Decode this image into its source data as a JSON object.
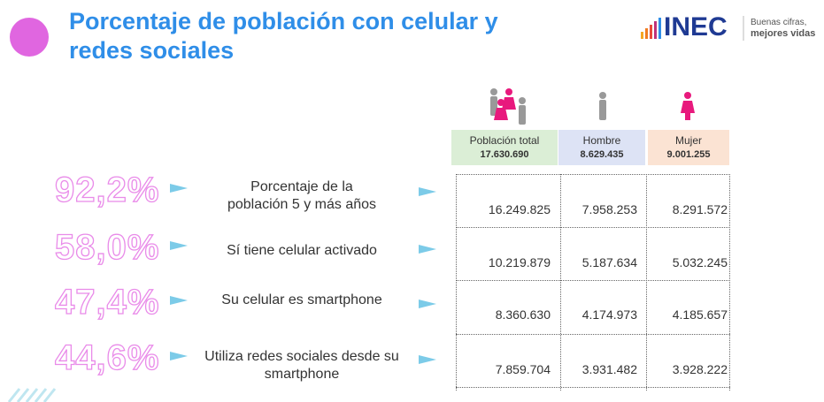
{
  "header": {
    "title_lines": [
      "Porcentaje de población con celular y",
      "redes sociales"
    ],
    "logo": {
      "name": "INEC",
      "tagline_lines": [
        "Buenas cifras,",
        "mejores vidas"
      ]
    }
  },
  "table": {
    "columns": [
      {
        "label": "Población total",
        "total": "17.630.690"
      },
      {
        "label": "Hombre",
        "total": "8.629.435"
      },
      {
        "label": "Mujer",
        "total": "9.001.255"
      }
    ],
    "rows": [
      {
        "percent": "92,2%",
        "label_lines": [
          "Porcentaje de la",
          "población 5 y más años"
        ],
        "values": [
          "16.249.825",
          "7.958.253",
          "8.291.572"
        ]
      },
      {
        "percent": "58,0%",
        "label_lines": [
          "Sí tiene celular activado"
        ],
        "values": [
          "10.219.879",
          "5.187.634",
          "5.032.245"
        ]
      },
      {
        "percent": "47,4%",
        "label_lines": [
          "Su celular es smartphone"
        ],
        "values": [
          "8.360.630",
          "4.174.973",
          "4.185.657"
        ]
      },
      {
        "percent": "44,6%",
        "label_lines": [
          "Utiliza redes sociales desde su",
          "smartphone"
        ],
        "values": [
          "7.859.704",
          "3.931.482",
          "3.928.222"
        ]
      }
    ]
  }
}
